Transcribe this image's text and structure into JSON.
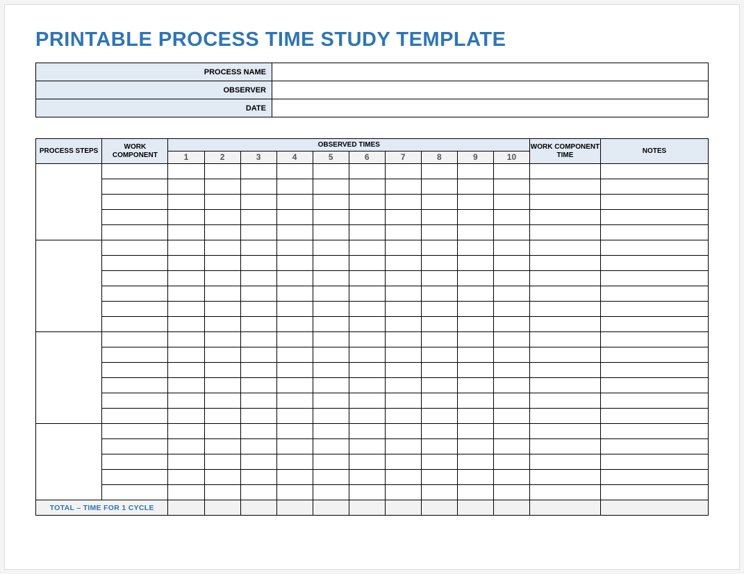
{
  "title": "PRINTABLE PROCESS TIME STUDY TEMPLATE",
  "colors": {
    "title": "#2e75b6",
    "header_fill": "#e2eaf4",
    "subheader_fill": "#f2f2f2",
    "total_fill": "#f2f2f2",
    "border": "#000000",
    "page_bg": "#ffffff",
    "outer_bg": "#f4f4f4"
  },
  "info": {
    "rows": [
      {
        "label": "PROCESS NAME",
        "value": ""
      },
      {
        "label": "OBSERVER",
        "value": ""
      },
      {
        "label": "DATE",
        "value": ""
      }
    ]
  },
  "study": {
    "headers": {
      "process_steps": "PROCESS STEPS",
      "work_component": "WORK COMPONENT",
      "observed_times": "OBSERVED TIMES",
      "observed_numbers": [
        "1",
        "2",
        "3",
        "4",
        "5",
        "6",
        "7",
        "8",
        "9",
        "10"
      ],
      "work_component_time": "WORK COMPONENT TIME",
      "notes": "NOTES"
    },
    "groups": [
      {
        "step": "",
        "rows": 5
      },
      {
        "step": "",
        "rows": 6
      },
      {
        "step": "",
        "rows": 6
      },
      {
        "step": "",
        "rows": 5
      }
    ],
    "total_label": "TOTAL – TIME FOR 1 CYCLE"
  }
}
